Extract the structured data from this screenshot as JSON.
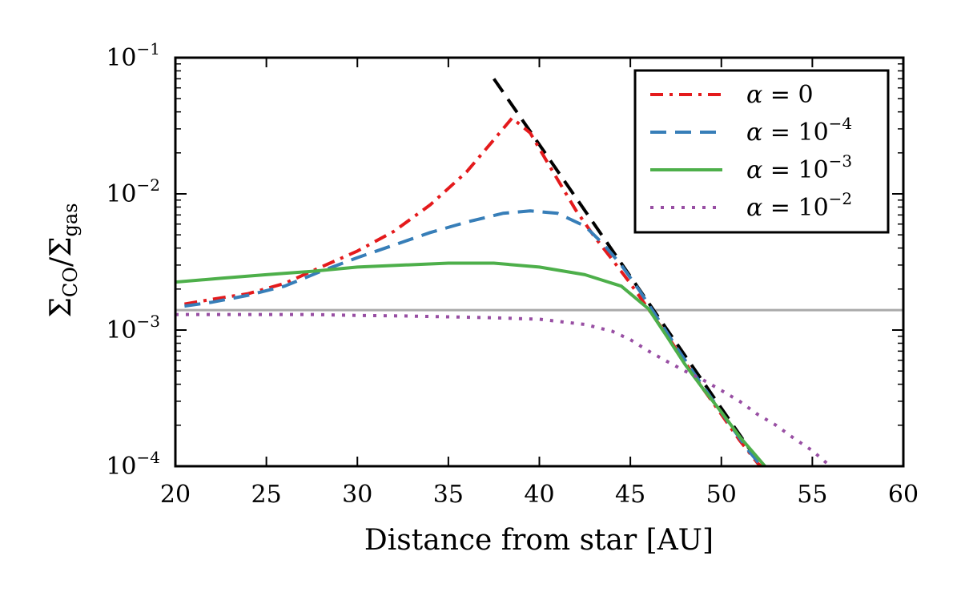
{
  "chart_data": {
    "type": "line",
    "title": "",
    "xlabel": "Distance from star [AU]",
    "ylabel": {
      "base": "Σ",
      "num_sub": "CO",
      "sep": "/Σ",
      "den_sub": "gas"
    },
    "xlim": [
      20,
      60
    ],
    "ylim": [
      0.0001,
      0.1
    ],
    "yscale": "log",
    "grid": false,
    "legend_position": "upper-right",
    "x_ticks": [
      20,
      25,
      30,
      35,
      40,
      45,
      50,
      55,
      60
    ],
    "x_tick_labels": [
      "20",
      "25",
      "30",
      "35",
      "40",
      "45",
      "50",
      "55",
      "60"
    ],
    "y_ticks": [
      {
        "value": 0.0001,
        "base": "10",
        "exp": "−4"
      },
      {
        "value": 0.001,
        "base": "10",
        "exp": "−3"
      },
      {
        "value": 0.01,
        "base": "10",
        "exp": "−2"
      },
      {
        "value": 0.1,
        "base": "10",
        "exp": "−1"
      }
    ],
    "series": [
      {
        "name": "α = 0",
        "legend": {
          "lhs": "α",
          "eq": " = ",
          "base": "0",
          "exp": ""
        },
        "color": "#e41a1c",
        "dash": "dashdot",
        "x": [
          20.5,
          22,
          24,
          26,
          28,
          30,
          32,
          34,
          36,
          37.5,
          38.5,
          39.5,
          40.5,
          42,
          43,
          44,
          45,
          46,
          47,
          48,
          49,
          50,
          51,
          52,
          52.2
        ],
        "y": [
          0.00155,
          0.00168,
          0.00185,
          0.0022,
          0.0029,
          0.0038,
          0.0053,
          0.0083,
          0.0145,
          0.025,
          0.036,
          0.028,
          0.0165,
          0.0076,
          0.0049,
          0.0033,
          0.0022,
          0.00142,
          0.00092,
          0.00058,
          0.00037,
          0.00024,
          0.000155,
          0.000105,
          0.0001
        ]
      },
      {
        "name": "α = 10^-4",
        "legend": {
          "lhs": "α",
          "eq": " = ",
          "base": "10",
          "exp": "−4"
        },
        "color": "#377eb8",
        "dash": "dashed",
        "x": [
          20.5,
          22,
          24,
          26,
          28,
          30,
          32,
          34,
          36,
          38,
          39.5,
          41,
          42.5,
          43.5,
          44.5,
          45.5,
          46.5,
          47.5,
          48.5,
          49.5,
          50.5,
          51.5,
          52.2
        ],
        "y": [
          0.0015,
          0.0016,
          0.0018,
          0.0021,
          0.0027,
          0.0034,
          0.0042,
          0.0052,
          0.0062,
          0.0072,
          0.0075,
          0.0072,
          0.0058,
          0.0043,
          0.003,
          0.00195,
          0.00122,
          0.00076,
          0.00048,
          0.00031,
          0.0002,
          0.00013,
          0.0001
        ]
      },
      {
        "name": "α = 10^-3",
        "legend": {
          "lhs": "α",
          "eq": " = ",
          "base": "10",
          "exp": "−3"
        },
        "color": "#4daf4a",
        "dash": "solid",
        "x": [
          20,
          22.5,
          25,
          27.5,
          30,
          32.5,
          35,
          37.5,
          40,
          42.5,
          44.5,
          46,
          47,
          48,
          49,
          50,
          51,
          52.4
        ],
        "y": [
          0.00225,
          0.0024,
          0.00255,
          0.0027,
          0.0029,
          0.003,
          0.0031,
          0.0031,
          0.0029,
          0.00255,
          0.0021,
          0.00143,
          0.0009,
          0.00056,
          0.00037,
          0.00025,
          0.000165,
          0.0001
        ]
      },
      {
        "name": "α = 10^-2",
        "legend": {
          "lhs": "α",
          "eq": " = ",
          "base": "10",
          "exp": "−2"
        },
        "color": "#984ea3",
        "dash": "dotted",
        "x": [
          20,
          22.5,
          25,
          27.5,
          30,
          32.5,
          35,
          37.5,
          40,
          42.5,
          44,
          45,
          46,
          47,
          48,
          49,
          50,
          51,
          52,
          53,
          54,
          55,
          55.8
        ],
        "y": [
          0.0013,
          0.0013,
          0.0013,
          0.0013,
          0.00128,
          0.00127,
          0.00125,
          0.00123,
          0.0012,
          0.0011,
          0.00098,
          0.00085,
          0.0007,
          0.00059,
          0.0005,
          0.00043,
          0.00036,
          0.0003,
          0.00024,
          0.0002,
          0.00016,
          0.00013,
          0.000105
        ]
      }
    ],
    "reference_lines": [
      {
        "kind": "horizontal",
        "y": 0.0014,
        "color": "#aaaaaa",
        "dash": "solid"
      },
      {
        "kind": "segment",
        "x": [
          37.5,
          52.2
        ],
        "y": [
          0.07,
          0.0001
        ],
        "color": "#000000",
        "dash": "dashed"
      }
    ]
  }
}
